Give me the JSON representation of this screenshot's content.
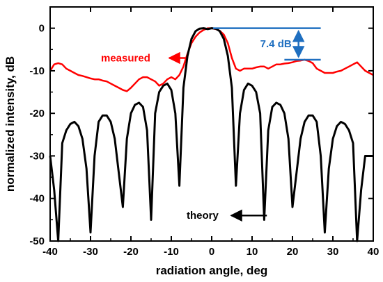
{
  "chart_data": {
    "type": "line",
    "title": "",
    "xlabel": "radiation angle, deg",
    "ylabel": "normalized intensity, dB",
    "xlim": [
      -40,
      40
    ],
    "ylim": [
      -50,
      5
    ],
    "x_ticks": [
      -40,
      -30,
      -20,
      -10,
      0,
      10,
      20,
      30,
      40
    ],
    "y_ticks": [
      0,
      -10,
      -20,
      -30,
      -40,
      -50
    ],
    "x_tick_labels": [
      "-40",
      "-30",
      "-20",
      "-10",
      "0",
      "10",
      "20",
      "30",
      "40"
    ],
    "y_tick_labels": [
      "0",
      "-10",
      "-20",
      "-30",
      "-40",
      "-50"
    ],
    "grid": false,
    "legend": "none",
    "series": [
      {
        "name": "measured",
        "color": "#ff0000",
        "x": [
          -40,
          -39,
          -38,
          -37,
          -36,
          -35,
          -34,
          -33,
          -32,
          -31,
          -30,
          -29,
          -28,
          -27,
          -26,
          -25,
          -24,
          -23,
          -22,
          -21,
          -20,
          -19,
          -18,
          -17,
          -16,
          -15,
          -14,
          -13,
          -12,
          -11,
          -10,
          -9,
          -8,
          -7,
          -6,
          -5,
          -4,
          -3,
          -2,
          -1,
          0,
          1,
          2,
          3,
          4,
          5,
          6,
          7,
          8,
          9,
          10,
          11,
          12,
          13,
          14,
          15,
          16,
          17,
          18,
          19,
          20,
          21,
          22,
          23,
          24,
          25,
          26,
          27,
          28,
          29,
          30,
          31,
          32,
          33,
          34,
          35,
          36,
          37,
          38,
          39,
          40
        ],
        "values": [
          -10,
          -8.5,
          -8.2,
          -8.5,
          -9.5,
          -10,
          -10.5,
          -11,
          -11.2,
          -11.5,
          -11.8,
          -12,
          -12,
          -12.3,
          -12.5,
          -13,
          -13.5,
          -14,
          -14.5,
          -14.8,
          -14,
          -13,
          -12,
          -11.5,
          -11.5,
          -12,
          -12.5,
          -13.5,
          -13,
          -12,
          -11.5,
          -12,
          -11,
          -9,
          -6,
          -3.5,
          -2,
          -1,
          -0.4,
          0,
          0,
          -0.2,
          -0.6,
          -1.5,
          -3.5,
          -7,
          -9.5,
          -10,
          -9.5,
          -9.5,
          -9.5,
          -9.2,
          -9,
          -9,
          -9.5,
          -9,
          -8.5,
          -8.5,
          -8.3,
          -8.2,
          -8,
          -7.7,
          -7.6,
          -7.4,
          -7.7,
          -8.2,
          -9.5,
          -10,
          -10.5,
          -10.5,
          -10.5,
          -10.2,
          -10,
          -9.5,
          -9,
          -8.5,
          -8,
          -9,
          -10,
          -10.5,
          -11
        ]
      },
      {
        "name": "theory",
        "color": "#000000",
        "x": [
          -40,
          -39,
          -38,
          -37,
          -36,
          -35,
          -34,
          -33,
          -32,
          -31,
          -30,
          -29,
          -28,
          -27,
          -26,
          -25,
          -24,
          -23,
          -22,
          -21,
          -20,
          -19,
          -18,
          -17,
          -16,
          -15,
          -14,
          -13,
          -12,
          -11,
          -10,
          -9,
          -8,
          -7,
          -6,
          -5,
          -4,
          -3,
          -2,
          -1,
          0,
          1,
          2,
          3,
          4,
          5,
          6,
          7,
          8,
          9,
          10,
          11,
          12,
          13,
          14,
          15,
          16,
          17,
          18,
          19,
          20,
          21,
          22,
          23,
          24,
          25,
          26,
          27,
          28,
          29,
          30,
          31,
          32,
          33,
          34,
          35,
          36,
          37,
          38,
          39,
          40
        ],
        "values": [
          -30,
          -38,
          -50,
          -27,
          -24,
          -22.5,
          -22,
          -23,
          -26,
          -33,
          -48,
          -30,
          -22,
          -20.5,
          -20.5,
          -22,
          -26,
          -34,
          -42,
          -26,
          -20,
          -18,
          -17.5,
          -18.5,
          -24,
          -45,
          -20,
          -15,
          -13.5,
          -13,
          -14.5,
          -20,
          -37,
          -14,
          -6.5,
          -2.5,
          -0.7,
          -0.1,
          0,
          -0.2,
          0,
          -0.1,
          -0.7,
          -2.5,
          -6.5,
          -14,
          -37,
          -20,
          -14.5,
          -13,
          -13.5,
          -15,
          -20,
          -45,
          -24,
          -18.5,
          -17.5,
          -18,
          -20,
          -26,
          -42,
          -34,
          -26,
          -22,
          -20.5,
          -20.5,
          -22,
          -30,
          -48,
          -33,
          -26,
          -23,
          -22,
          -22.5,
          -24,
          -27,
          -50,
          -38,
          -30,
          -30,
          -30
        ]
      }
    ],
    "annotations": [
      {
        "text": "measured",
        "color": "#ff0000",
        "arrow_to_x": -6.5,
        "arrow_to_y": -7
      },
      {
        "text": "theory",
        "color": "#000000",
        "arrow_to_x": 14,
        "arrow_to_y": -44
      },
      {
        "text": "7.4 dB",
        "color": "#1f6fc0",
        "from_y": 0,
        "to_y": -7.4
      }
    ]
  }
}
